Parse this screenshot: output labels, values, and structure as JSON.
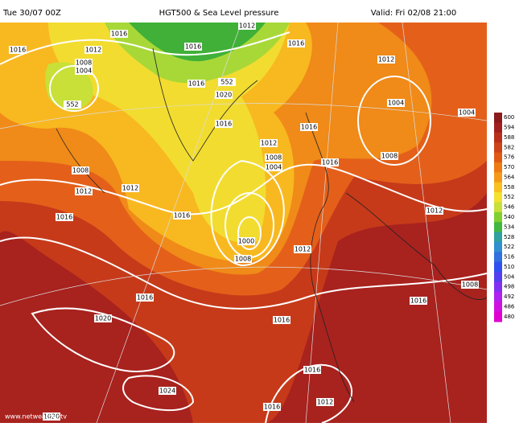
{
  "header": {
    "run": "Tue 30/07 00Z",
    "title": "HGT500 & Sea Level pressure",
    "valid": "Valid: Fri 02/08 21:00"
  },
  "isobar_labels": [
    "1012",
    "1016",
    "1016",
    "1016",
    "1016",
    "1012",
    "1008",
    "1004",
    "552",
    "552",
    "1016",
    "1020",
    "1012",
    "1004",
    "1004",
    "1016",
    "1016",
    "1012",
    "1008",
    "1004",
    "1008",
    "1016",
    "1008",
    "1012",
    "1012",
    "1016",
    "1016",
    "1012",
    "1000",
    "1008",
    "1012",
    "1016",
    "1016",
    "1016",
    "1008",
    "1020",
    "1016",
    "1024",
    "1012",
    "1016",
    "1020"
  ],
  "colorbar": {
    "levels": [
      600,
      594,
      588,
      582,
      576,
      570,
      564,
      558,
      552,
      546,
      540,
      534,
      528,
      522,
      516,
      510,
      504,
      498,
      492,
      486,
      480
    ],
    "colors": [
      "#8b1a1a",
      "#a02020",
      "#b8301c",
      "#cc4418",
      "#e05a14",
      "#ee7a12",
      "#f49a18",
      "#f8c020",
      "#f4e030",
      "#c8e038",
      "#80d030",
      "#40b840",
      "#30a0a0",
      "#3090d0",
      "#3070e0",
      "#3050f0",
      "#5040f0",
      "#8030f0",
      "#b020f0",
      "#d010e0",
      "#e000d0"
    ]
  },
  "watermark": "www.netweather.tv"
}
